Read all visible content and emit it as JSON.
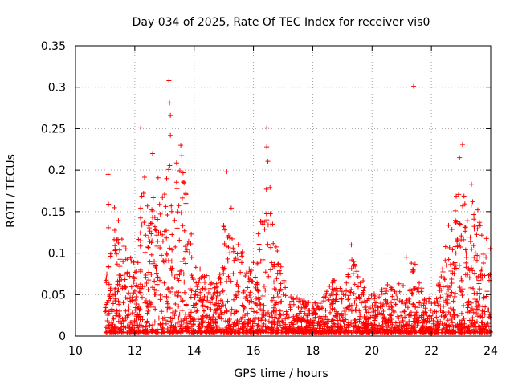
{
  "chart_data": {
    "type": "scatter",
    "title": "Day 034 of 2025, Rate Of TEC Index for receiver vis0",
    "xlabel": "GPS time / hours",
    "ylabel": "ROTI / TECUs",
    "xlim": [
      10,
      24
    ],
    "ylim": [
      0,
      0.35
    ],
    "x_ticks": [
      10,
      12,
      14,
      16,
      18,
      20,
      22,
      24
    ],
    "x_tick_labels": [
      "10",
      "12",
      "14",
      "16",
      "18",
      "20",
      "22",
      "24"
    ],
    "y_ticks": [
      0,
      0.05,
      0.1,
      0.15,
      0.2,
      0.25,
      0.3,
      0.35
    ],
    "y_tick_labels": [
      "0",
      "0.05",
      "0.1",
      "0.15",
      "0.2",
      "0.25",
      "0.3",
      "0.35"
    ],
    "grid": true,
    "marker": "+",
    "marker_color": "#ff0000",
    "notable_points": [
      {
        "x": 11.1,
        "y": 0.195
      },
      {
        "x": 12.2,
        "y": 0.251
      },
      {
        "x": 12.6,
        "y": 0.22
      },
      {
        "x": 13.15,
        "y": 0.308
      },
      {
        "x": 13.17,
        "y": 0.281
      },
      {
        "x": 13.2,
        "y": 0.266
      },
      {
        "x": 13.2,
        "y": 0.242
      },
      {
        "x": 13.55,
        "y": 0.23
      },
      {
        "x": 15.1,
        "y": 0.198
      },
      {
        "x": 16.45,
        "y": 0.251
      },
      {
        "x": 16.45,
        "y": 0.228
      },
      {
        "x": 19.3,
        "y": 0.11
      },
      {
        "x": 21.15,
        "y": 0.095
      },
      {
        "x": 21.4,
        "y": 0.301
      },
      {
        "x": 22.95,
        "y": 0.215
      },
      {
        "x": 23.05,
        "y": 0.231
      },
      {
        "x": 23.35,
        "y": 0.183
      }
    ],
    "envelope": {
      "description": "dense ROTI scatter between 11 and 24 hours",
      "x": [
        11.0,
        11.3,
        11.6,
        12.0,
        12.3,
        12.6,
        13.0,
        13.3,
        13.6,
        14.0,
        14.4,
        14.8,
        15.1,
        15.4,
        15.8,
        16.1,
        16.5,
        16.8,
        17.2,
        17.6,
        18.0,
        18.3,
        18.7,
        19.0,
        19.4,
        19.8,
        20.2,
        20.6,
        21.0,
        21.4,
        21.8,
        22.2,
        22.5,
        22.8,
        23.0,
        23.3,
        23.6,
        23.9,
        24.0
      ],
      "max": [
        0.19,
        0.16,
        0.11,
        0.09,
        0.2,
        0.17,
        0.21,
        0.2,
        0.22,
        0.09,
        0.07,
        0.06,
        0.19,
        0.13,
        0.08,
        0.1,
        0.22,
        0.1,
        0.05,
        0.04,
        0.035,
        0.04,
        0.07,
        0.05,
        0.1,
        0.05,
        0.05,
        0.06,
        0.06,
        0.09,
        0.04,
        0.05,
        0.12,
        0.16,
        0.2,
        0.17,
        0.15,
        0.12,
        0.12
      ]
    }
  }
}
